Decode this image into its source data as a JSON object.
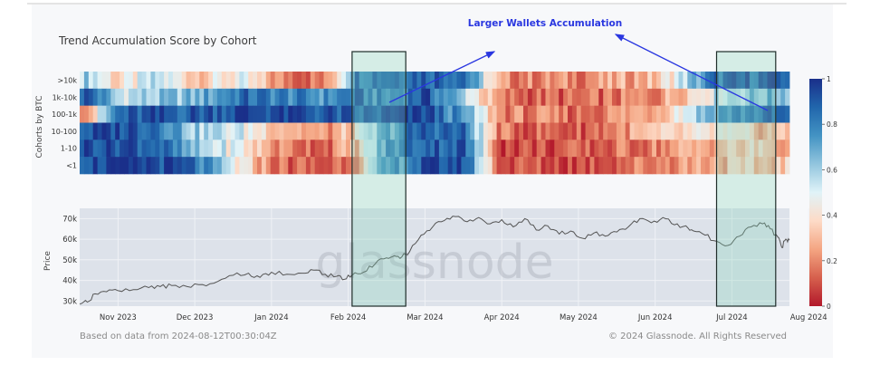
{
  "chart_data": [
    {
      "type": "heatmap",
      "title": "Trend Accumulation Score by Cohort",
      "ylabel": "Cohorts by BTC",
      "rows": [
        ">10k",
        "1k-10k",
        "100-1k",
        "10-100",
        "1-10",
        "<1"
      ],
      "color_scale": {
        "min": 0,
        "max": 1,
        "ticks": [
          "0",
          "0.2",
          "0.4",
          "0.6",
          "0.8",
          "1"
        ],
        "colors": [
          "#b2182b",
          "#d6604d",
          "#f4a582",
          "#fddbc7",
          "#e0f3f8",
          "#92c5de",
          "#4393c3",
          "#2166ac",
          "#1a2f8a"
        ]
      },
      "phases": [
        {
          "months": 0.15,
          "values": [
            0.6,
            0.9,
            0.3,
            0.9,
            0.95,
            0.95
          ]
        },
        {
          "months": 0.5,
          "values": [
            0.35,
            0.55,
            0.85,
            0.95,
            0.95,
            0.95
          ]
        },
        {
          "months": 1.0,
          "values": [
            0.55,
            0.6,
            0.9,
            0.9,
            0.9,
            0.95
          ]
        },
        {
          "months": 1.5,
          "values": [
            0.35,
            0.65,
            0.9,
            0.6,
            0.6,
            0.85
          ]
        },
        {
          "months": 2.1,
          "values": [
            0.45,
            0.85,
            0.95,
            0.5,
            0.45,
            0.4
          ]
        },
        {
          "months": 2.6,
          "values": [
            0.2,
            0.8,
            0.95,
            0.35,
            0.2,
            0.15
          ]
        },
        {
          "months": 3.2,
          "values": [
            0.15,
            0.75,
            0.9,
            0.2,
            0.15,
            0.1
          ]
        },
        {
          "months": 3.6,
          "values": [
            0.85,
            0.85,
            0.85,
            0.35,
            0.3,
            0.25
          ]
        },
        {
          "months": 4.0,
          "values": [
            0.9,
            0.75,
            0.9,
            0.7,
            0.75,
            0.7
          ]
        },
        {
          "months": 4.5,
          "values": [
            0.9,
            0.92,
            0.95,
            0.9,
            0.9,
            0.9
          ]
        },
        {
          "months": 5.0,
          "values": [
            0.9,
            0.6,
            0.7,
            0.85,
            0.9,
            0.95
          ]
        },
        {
          "months": 5.5,
          "values": [
            0.2,
            0.15,
            0.2,
            0.15,
            0.1,
            0.1
          ]
        },
        {
          "months": 6.5,
          "values": [
            0.2,
            0.12,
            0.15,
            0.12,
            0.1,
            0.1
          ]
        },
        {
          "months": 7.5,
          "values": [
            0.3,
            0.2,
            0.3,
            0.3,
            0.2,
            0.2
          ]
        },
        {
          "months": 8.3,
          "values": [
            0.85,
            0.55,
            0.75,
            0.4,
            0.3,
            0.3
          ]
        },
        {
          "months": 8.9,
          "values": [
            0.9,
            0.65,
            0.85,
            0.3,
            0.35,
            0.3
          ]
        },
        {
          "months": 9.25,
          "values": [
            0.9,
            0.7,
            0.85,
            0.3,
            0.25,
            0.35
          ]
        }
      ],
      "highlights": [
        {
          "from": 3.55,
          "to": 4.25
        },
        {
          "from": 8.3,
          "to": 9.07
        }
      ],
      "annotation": "Larger Wallets Accumulation"
    },
    {
      "type": "line",
      "ylabel": "Price",
      "y_ticks": [
        "30k",
        "40k",
        "50k",
        "60k",
        "70k"
      ],
      "ylim": [
        27500,
        75000
      ],
      "x_ticks": [
        "Nov 2023",
        "Dec 2023",
        "Jan 2024",
        "Feb 2024",
        "Mar 2024",
        "Apr 2024",
        "May 2024",
        "Jun 2024",
        "Jul 2024",
        "Aug 2024"
      ],
      "x_range": [
        0,
        9.25
      ],
      "x_unit": "months since 2023-10-15",
      "points": [
        [
          0.0,
          28500
        ],
        [
          0.1,
          29500
        ],
        [
          0.2,
          33500
        ],
        [
          0.35,
          34500
        ],
        [
          0.5,
          35000
        ],
        [
          0.7,
          35500
        ],
        [
          0.9,
          36500
        ],
        [
          1.05,
          37000
        ],
        [
          1.2,
          37500
        ],
        [
          1.4,
          37000
        ],
        [
          1.6,
          38000
        ],
        [
          1.8,
          39500
        ],
        [
          2.0,
          42500
        ],
        [
          2.2,
          43500
        ],
        [
          2.35,
          41500
        ],
        [
          2.5,
          44000
        ],
        [
          2.7,
          43000
        ],
        [
          2.9,
          43500
        ],
        [
          3.05,
          45000
        ],
        [
          3.2,
          43000
        ],
        [
          3.35,
          42000
        ],
        [
          3.45,
          40500
        ],
        [
          3.55,
          42500
        ],
        [
          3.7,
          44000
        ],
        [
          3.85,
          48000
        ],
        [
          4.0,
          51000
        ],
        [
          4.1,
          52000
        ],
        [
          4.2,
          51500
        ],
        [
          4.3,
          54000
        ],
        [
          4.45,
          62000
        ],
        [
          4.6,
          66000
        ],
        [
          4.75,
          69000
        ],
        [
          4.9,
          71000
        ],
        [
          5.05,
          68500
        ],
        [
          5.2,
          70500
        ],
        [
          5.35,
          67500
        ],
        [
          5.5,
          69500
        ],
        [
          5.65,
          66000
        ],
        [
          5.8,
          70000
        ],
        [
          5.95,
          64500
        ],
        [
          6.1,
          66500
        ],
        [
          6.25,
          62500
        ],
        [
          6.4,
          64000
        ],
        [
          6.55,
          60500
        ],
        [
          6.7,
          63000
        ],
        [
          6.85,
          61500
        ],
        [
          7.0,
          63500
        ],
        [
          7.15,
          66000
        ],
        [
          7.3,
          70000
        ],
        [
          7.45,
          68000
        ],
        [
          7.6,
          70500
        ],
        [
          7.75,
          67000
        ],
        [
          7.9,
          66500
        ],
        [
          8.0,
          64000
        ],
        [
          8.15,
          62000
        ],
        [
          8.3,
          59000
        ],
        [
          8.45,
          57000
        ],
        [
          8.6,
          61500
        ],
        [
          8.75,
          66000
        ],
        [
          8.9,
          67500
        ],
        [
          9.0,
          65000
        ],
        [
          9.1,
          61000
        ],
        [
          9.15,
          56000
        ],
        [
          9.2,
          60000
        ],
        [
          9.25,
          59500
        ]
      ]
    }
  ],
  "footer": {
    "left": "Based on data from 2024-08-12T00:30:04Z",
    "right": "© 2024 Glassnode. All Rights Reserved"
  }
}
